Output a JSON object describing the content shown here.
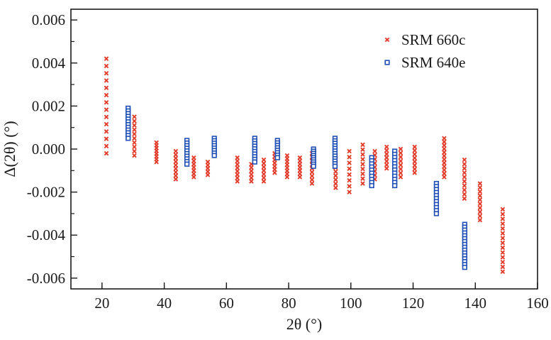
{
  "chart_data": {
    "type": "scatter",
    "xlabel": "2θ (°)",
    "ylabel": "Δ(2θ) (°)",
    "xlim": [
      10,
      160
    ],
    "ylim": [
      -0.0065,
      0.0065
    ],
    "xticks": [
      20,
      40,
      60,
      80,
      100,
      120,
      140,
      160
    ],
    "xtick_labels": [
      "20",
      "40",
      "60",
      "80",
      "100",
      "120",
      "140",
      "160"
    ],
    "yticks": [
      0.006,
      0.004,
      0.002,
      0.0,
      -0.002,
      -0.004,
      -0.006
    ],
    "ytick_labels": [
      "0.006",
      "0.004",
      "0.002",
      "0.000",
      "-0.002",
      "-0.004",
      "-0.006"
    ],
    "grid": false,
    "legend_position": "top-right",
    "series": [
      {
        "name": "SRM 660c",
        "marker": "x",
        "color": "#e23b2a",
        "clusters": [
          {
            "x": 21.4,
            "ymin": -0.0002,
            "ymax": 0.0042,
            "n": 14
          },
          {
            "x": 30.4,
            "ymin": -0.0003,
            "ymax": 0.0015,
            "n": 10
          },
          {
            "x": 37.5,
            "ymin": -0.0006,
            "ymax": 0.0003,
            "n": 8
          },
          {
            "x": 43.7,
            "ymin": -0.0014,
            "ymax": -0.0001,
            "n": 9
          },
          {
            "x": 49.5,
            "ymin": -0.0013,
            "ymax": -0.0004,
            "n": 7
          },
          {
            "x": 54.0,
            "ymin": -0.0012,
            "ymax": -0.0006,
            "n": 5
          },
          {
            "x": 63.5,
            "ymin": -0.0015,
            "ymax": -0.0004,
            "n": 8
          },
          {
            "x": 68.0,
            "ymin": -0.0015,
            "ymax": -0.0007,
            "n": 6
          },
          {
            "x": 72.0,
            "ymin": -0.0015,
            "ymax": -0.0005,
            "n": 7
          },
          {
            "x": 75.5,
            "ymin": -0.0011,
            "ymax": -0.0002,
            "n": 7
          },
          {
            "x": 79.5,
            "ymin": -0.0013,
            "ymax": -0.0003,
            "n": 8
          },
          {
            "x": 83.6,
            "ymin": -0.0013,
            "ymax": -0.0004,
            "n": 7
          },
          {
            "x": 87.5,
            "ymin": -0.0016,
            "ymax": -0.0002,
            "n": 9
          },
          {
            "x": 95.1,
            "ymin": -0.0018,
            "ymax": -0.0003,
            "n": 9
          },
          {
            "x": 99.5,
            "ymin": -0.002,
            "ymax": -0.0001,
            "n": 8
          },
          {
            "x": 103.8,
            "ymin": -0.0016,
            "ymax": 0.0002,
            "n": 9
          },
          {
            "x": 107.7,
            "ymin": -0.0014,
            "ymax": -0.0001,
            "n": 8
          },
          {
            "x": 111.5,
            "ymin": -0.0009,
            "ymax": 0.0001,
            "n": 7
          },
          {
            "x": 116.0,
            "ymin": -0.0013,
            "ymax": 0.0,
            "n": 8
          },
          {
            "x": 120.5,
            "ymin": -0.0011,
            "ymax": 0.0001,
            "n": 8
          },
          {
            "x": 130.0,
            "ymin": -0.0013,
            "ymax": 0.0005,
            "n": 12
          },
          {
            "x": 136.5,
            "ymin": -0.0023,
            "ymax": -0.0005,
            "n": 10
          },
          {
            "x": 141.5,
            "ymin": -0.0033,
            "ymax": -0.0016,
            "n": 10
          },
          {
            "x": 148.8,
            "ymin": -0.0057,
            "ymax": -0.0028,
            "n": 14
          }
        ]
      },
      {
        "name": "SRM 640e",
        "marker": "square",
        "color": "#1f4fb4",
        "clusters": [
          {
            "x": 28.4,
            "ymin": 0.0005,
            "ymax": 0.0019,
            "n": 12
          },
          {
            "x": 47.3,
            "ymin": -0.0007,
            "ymax": 0.0004,
            "n": 10
          },
          {
            "x": 56.1,
            "ymin": -0.0003,
            "ymax": 0.0005,
            "n": 8
          },
          {
            "x": 69.1,
            "ymin": -0.0006,
            "ymax": 0.0005,
            "n": 10
          },
          {
            "x": 76.4,
            "ymin": -0.0004,
            "ymax": 0.0004,
            "n": 8
          },
          {
            "x": 88.0,
            "ymin": -0.0008,
            "ymax": 0.0,
            "n": 9
          },
          {
            "x": 94.9,
            "ymin": -0.0008,
            "ymax": 0.0005,
            "n": 12
          },
          {
            "x": 106.7,
            "ymin": -0.0017,
            "ymax": -0.0004,
            "n": 10
          },
          {
            "x": 114.1,
            "ymin": -0.0017,
            "ymax": -0.0001,
            "n": 12
          },
          {
            "x": 127.5,
            "ymin": -0.003,
            "ymax": -0.0016,
            "n": 11
          },
          {
            "x": 136.6,
            "ymin": -0.0055,
            "ymax": -0.0035,
            "n": 16
          }
        ]
      }
    ]
  }
}
